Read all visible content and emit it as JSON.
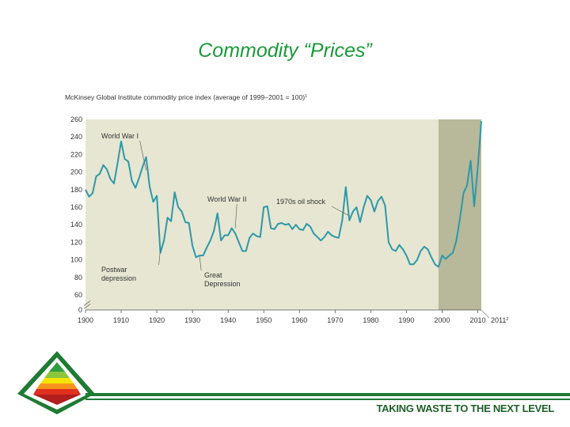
{
  "slide": {
    "title": "Commodity “Prices”",
    "tagline": "TAKING WASTE TO THE NEXT LEVEL"
  },
  "colors": {
    "title_green": "#1a9a3a",
    "footer_green": "#1f7a33",
    "plot_background": "#e6e6d2",
    "shaded_background": "#b8b89a",
    "line": "#2d98a8"
  },
  "chart_data": {
    "type": "line",
    "title": "McKinsey Global Institute commodity price index (average of 1999–2001 = 100)",
    "title_superscript": "1",
    "xlabel": "",
    "ylabel": "",
    "xlim": [
      1900,
      2011
    ],
    "ylim": [
      0,
      260
    ],
    "y_ticks": [
      0,
      60,
      80,
      100,
      120,
      140,
      160,
      180,
      200,
      220,
      240,
      260
    ],
    "x_ticks": [
      1900,
      1910,
      1920,
      1930,
      1940,
      1950,
      1960,
      1970,
      1980,
      1990,
      2000,
      2010
    ],
    "x_extra_tick_label": "2011",
    "x_extra_tick_superscript": "2",
    "shaded_region": [
      1999,
      2011
    ],
    "axis_break": "y between 0 and 60",
    "series": [
      {
        "name": "Commodity price index",
        "x": [
          1900,
          1901,
          1902,
          1903,
          1904,
          1905,
          1906,
          1907,
          1908,
          1909,
          1910,
          1911,
          1912,
          1913,
          1914,
          1915,
          1916,
          1917,
          1918,
          1919,
          1920,
          1921,
          1922,
          1923,
          1924,
          1925,
          1926,
          1927,
          1928,
          1929,
          1930,
          1931,
          1932,
          1933,
          1934,
          1935,
          1936,
          1937,
          1938,
          1939,
          1940,
          1941,
          1942,
          1943,
          1944,
          1945,
          1946,
          1947,
          1948,
          1949,
          1950,
          1951,
          1952,
          1953,
          1954,
          1955,
          1956,
          1957,
          1958,
          1959,
          1960,
          1961,
          1962,
          1963,
          1964,
          1965,
          1966,
          1967,
          1968,
          1969,
          1970,
          1971,
          1972,
          1973,
          1974,
          1975,
          1976,
          1977,
          1978,
          1979,
          1980,
          1981,
          1982,
          1983,
          1984,
          1985,
          1986,
          1987,
          1988,
          1989,
          1990,
          1991,
          1992,
          1993,
          1994,
          1995,
          1996,
          1997,
          1998,
          1999,
          2000,
          2001,
          2002,
          2003,
          2004,
          2005,
          2006,
          2007,
          2008,
          2009,
          2010,
          2011
        ],
        "values": [
          180,
          172,
          176,
          195,
          198,
          208,
          203,
          192,
          187,
          210,
          235,
          215,
          212,
          190,
          182,
          193,
          206,
          217,
          183,
          166,
          173,
          108,
          122,
          148,
          144,
          177,
          160,
          155,
          143,
          142,
          116,
          103,
          105,
          105,
          114,
          122,
          133,
          153,
          122,
          128,
          128,
          136,
          130,
          120,
          110,
          110,
          125,
          130,
          127,
          126,
          160,
          161,
          136,
          135,
          141,
          142,
          140,
          141,
          135,
          140,
          135,
          134,
          141,
          138,
          130,
          126,
          122,
          126,
          132,
          128,
          126,
          125,
          145,
          183,
          145,
          155,
          160,
          143,
          160,
          173,
          168,
          155,
          167,
          172,
          162,
          120,
          112,
          110,
          117,
          112,
          105,
          95,
          95,
          100,
          110,
          115,
          112,
          103,
          95,
          92,
          105,
          101,
          105,
          108,
          122,
          147,
          176,
          185,
          213,
          161,
          205,
          258
        ]
      }
    ],
    "annotations": [
      {
        "label": "World War I",
        "year": 1917
      },
      {
        "label": "Postwar depression",
        "year": 1921
      },
      {
        "label": "Great Depression",
        "year": 1932
      },
      {
        "label": "World War II",
        "year": 1942
      },
      {
        "label": "1970s oil shock",
        "year": 1974
      }
    ]
  }
}
